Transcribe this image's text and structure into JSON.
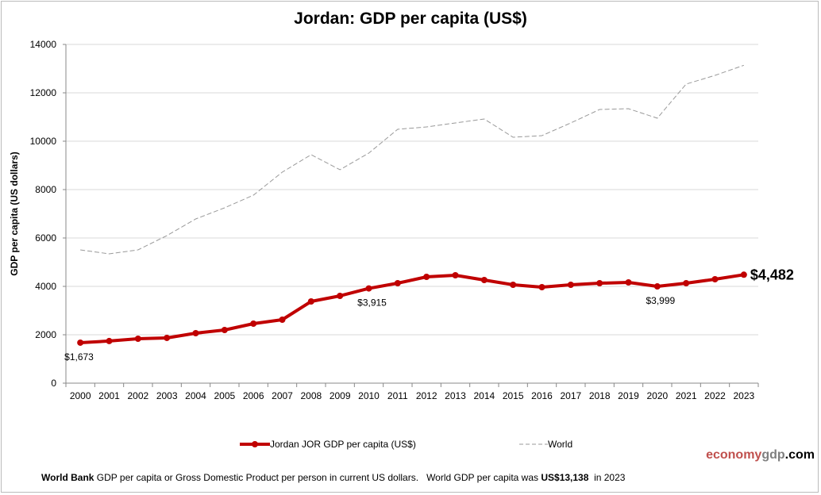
{
  "chart_data": {
    "type": "line",
    "title": "Jordan: GDP per capita (US$)",
    "ylabel": "GDP per capita (US dollars)",
    "xlabel": "",
    "ylim": [
      0,
      14000
    ],
    "yticks": [
      0,
      2000,
      4000,
      6000,
      8000,
      10000,
      12000,
      14000
    ],
    "grid": true,
    "legend_placement": "bottom",
    "x": [
      "2000",
      "2001",
      "2002",
      "2003",
      "2004",
      "2005",
      "2006",
      "2007",
      "2008",
      "2009",
      "2010",
      "2011",
      "2012",
      "2013",
      "2014",
      "2015",
      "2016",
      "2017",
      "2018",
      "2019",
      "2020",
      "2021",
      "2022",
      "2023"
    ],
    "series": [
      {
        "name": "Jordan JOR GDP per capita (US$)",
        "color": "#c00000",
        "style": "solid-markers",
        "values": [
          1673,
          1740,
          1836,
          1870,
          2066,
          2197,
          2459,
          2623,
          3377,
          3607,
          3915,
          4131,
          4393,
          4459,
          4262,
          4066,
          3967,
          4066,
          4131,
          4164,
          3999,
          4131,
          4295,
          4482
        ]
      },
      {
        "name": "World",
        "color": "#999999",
        "style": "dashed",
        "values": [
          5508,
          5344,
          5508,
          6098,
          6787,
          7246,
          7770,
          8721,
          9443,
          8820,
          9508,
          10492,
          10590,
          10754,
          10918,
          10164,
          10230,
          10754,
          11311,
          11344,
          10951,
          12361,
          12721,
          13138
        ]
      }
    ],
    "annotations": [
      {
        "year": "2000",
        "text": "$1,673"
      },
      {
        "year": "2010",
        "text": "$3,915"
      },
      {
        "year": "2020",
        "text": "$3,999"
      },
      {
        "year": "2023",
        "text": "$4,482"
      }
    ]
  },
  "brand": {
    "part1": "economy",
    "part2": "gdp",
    "part3": ".com",
    "color1": "#c0504d",
    "color2": "#7f7f7f",
    "color3": "#000000"
  },
  "footer": {
    "source": "World Bank",
    "text": " GDP per capita or Gross Domestic Product per person in current US dollars.   World GDP per capita was ",
    "value": "US$13,138",
    "tail": "  in 2023"
  }
}
